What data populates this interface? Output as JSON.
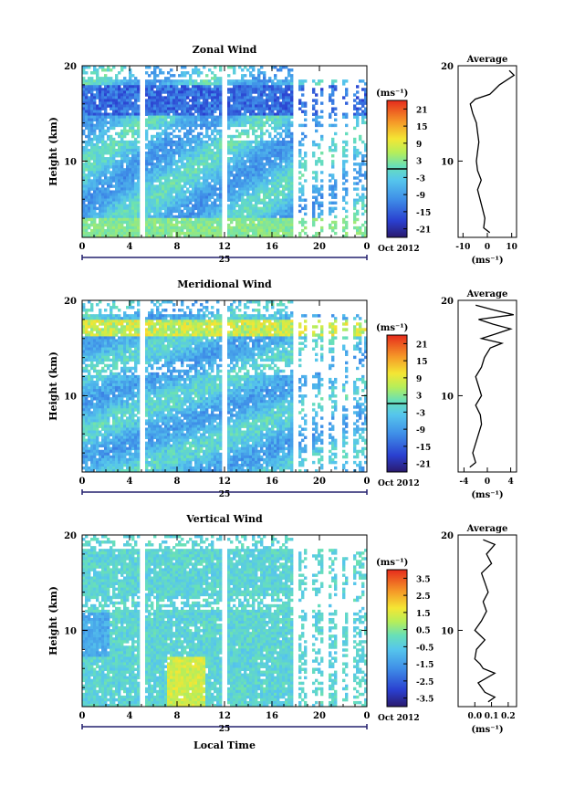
{
  "chart_data": [
    {
      "type": "heatmap",
      "title": "Zonal Wind",
      "ylabel": "Height (km)",
      "ylim": [
        2,
        20
      ],
      "yticks": [
        "10",
        "20"
      ],
      "xticks": [
        "0",
        "4",
        "8",
        "12",
        "16",
        "20",
        "0"
      ],
      "date_label": "25",
      "month_label": "Oct 2012",
      "colorbar": {
        "unit": "(ms⁻¹)",
        "ticks": [
          "21",
          "15",
          "9",
          "3",
          "-3",
          "-9",
          "-15",
          "-21"
        ],
        "range": [
          -24,
          24
        ],
        "zero_contour": true
      },
      "profile": {
        "title": "Average",
        "xticks": [
          "-10",
          "0",
          "10"
        ],
        "xlim": [
          -12,
          12
        ],
        "yticks": [
          "10",
          "20"
        ],
        "unit": "(ms⁻¹)",
        "heights": [
          2.5,
          3.0,
          4.0,
          5.0,
          6.0,
          7.0,
          8.0,
          9.0,
          10.0,
          11.0,
          12.0,
          13.0,
          14.0,
          15.0,
          16.0,
          16.5,
          17.0,
          17.5,
          18.0,
          18.5,
          19.0,
          19.5
        ],
        "values": [
          1.0,
          -1.5,
          -1.0,
          -2.0,
          -3.0,
          -4.0,
          -2.5,
          -4.0,
          -4.5,
          -4.0,
          -3.5,
          -4.0,
          -4.5,
          -6.0,
          -7.0,
          -5.0,
          1.0,
          3.0,
          5.0,
          8.0,
          11.0,
          9.0
        ]
      }
    },
    {
      "type": "heatmap",
      "title": "Meridional Wind",
      "ylabel": "Height (km)",
      "ylim": [
        2,
        20
      ],
      "yticks": [
        "10",
        "20"
      ],
      "xticks": [
        "0",
        "4",
        "8",
        "12",
        "16",
        "20",
        "0"
      ],
      "date_label": "25",
      "month_label": "Oct 2012",
      "colorbar": {
        "unit": "(ms⁻¹)",
        "ticks": [
          "21",
          "15",
          "9",
          "3",
          "-3",
          "-9",
          "-15",
          "-21"
        ],
        "range": [
          -24,
          24
        ],
        "zero_contour": true
      },
      "profile": {
        "title": "Average",
        "xticks": [
          "-4",
          "0",
          "4"
        ],
        "xlim": [
          -5,
          5
        ],
        "yticks": [
          "10",
          "20"
        ],
        "unit": "(ms⁻¹)",
        "heights": [
          2.5,
          3.0,
          4.0,
          5.0,
          6.0,
          7.0,
          8.0,
          9.0,
          10.0,
          11.0,
          12.0,
          13.0,
          14.0,
          15.0,
          15.5,
          16.0,
          16.5,
          17.0,
          17.5,
          18.0,
          18.5,
          19.0,
          19.5
        ],
        "values": [
          -3.0,
          -2.0,
          -2.5,
          -2.0,
          -1.5,
          -1.0,
          -1.2,
          -2.0,
          -1.0,
          -1.5,
          -2.0,
          -1.0,
          -0.5,
          0.5,
          2.5,
          -1.0,
          1.5,
          4.0,
          1.0,
          -1.5,
          4.5,
          1.0,
          -2.0
        ]
      }
    },
    {
      "type": "heatmap",
      "title": "Vertical Wind",
      "ylabel": "Height (km)",
      "xlabel": "Local Time",
      "ylim": [
        2,
        20
      ],
      "yticks": [
        "10",
        "20"
      ],
      "xticks": [
        "0",
        "4",
        "8",
        "12",
        "16",
        "20",
        "0"
      ],
      "date_label": "25",
      "month_label": "Oct 2012",
      "colorbar": {
        "unit": "(ms⁻¹)",
        "ticks": [
          "3.5",
          "2.5",
          "1.5",
          "0.5",
          "-0.5",
          "-1.5",
          "-2.5",
          "-3.5"
        ],
        "range": [
          -4,
          4
        ],
        "zero_contour": false
      },
      "profile": {
        "title": "Average",
        "xticks": [
          "0.0",
          "0.1",
          "0.2"
        ],
        "xlim": [
          -0.1,
          0.25
        ],
        "yticks": [
          "10",
          "20"
        ],
        "unit": "(ms⁻¹)",
        "heights": [
          2.5,
          3.0,
          3.5,
          4.0,
          4.5,
          5.0,
          5.5,
          6.0,
          6.5,
          7.0,
          8.0,
          9.0,
          10.0,
          11.0,
          12.0,
          13.0,
          14.0,
          15.0,
          16.0,
          17.0,
          18.0,
          19.0,
          19.5
        ],
        "values": [
          0.08,
          0.12,
          0.06,
          0.04,
          0.02,
          0.07,
          0.12,
          0.05,
          0.03,
          0.0,
          0.01,
          0.06,
          0.0,
          0.04,
          0.07,
          0.05,
          0.08,
          0.06,
          0.04,
          0.1,
          0.07,
          0.12,
          0.05
        ]
      }
    }
  ]
}
